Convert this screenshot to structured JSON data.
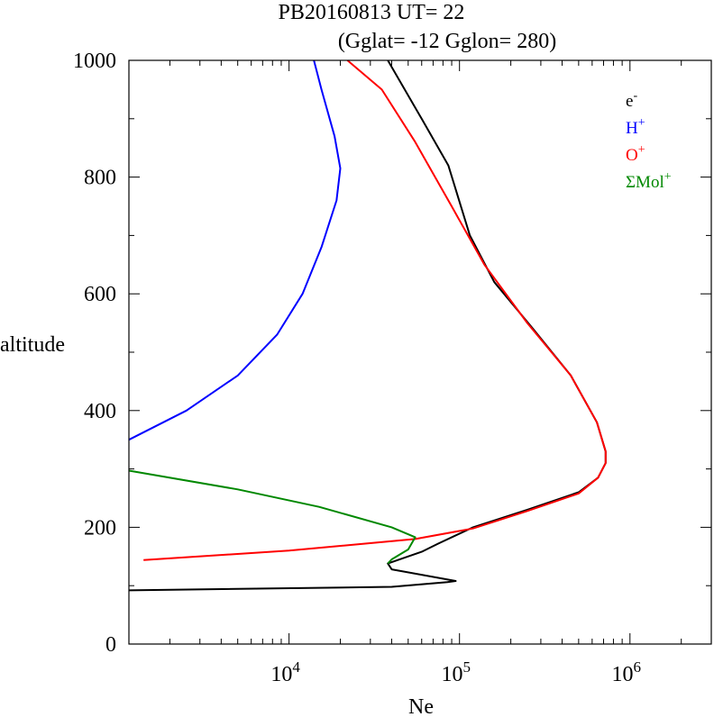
{
  "chart_data": {
    "type": "line",
    "title_line1": "PB20160813   UT=  22",
    "title_line2": "(Gglat= -12   Gglon=  280)",
    "xlabel": "Ne",
    "ylabel": "altitude",
    "xscale": "log",
    "xlim": [
      1150,
      3000000
    ],
    "ylim": [
      0,
      1000
    ],
    "x_ticks": [
      {
        "value": 10000,
        "base": "10",
        "exp": "4"
      },
      {
        "value": 100000,
        "base": "10",
        "exp": "5"
      },
      {
        "value": 1000000,
        "base": "10",
        "exp": "6"
      }
    ],
    "y_ticks": [
      {
        "value": 0,
        "label": "0"
      },
      {
        "value": 200,
        "label": "200"
      },
      {
        "value": 400,
        "label": "400"
      },
      {
        "value": 600,
        "label": "600"
      },
      {
        "value": 800,
        "label": "800"
      },
      {
        "value": 1000,
        "label": "1000"
      }
    ],
    "legend_position": "top-right",
    "series": [
      {
        "name": "e-",
        "label_base": "e",
        "label_sup": "-",
        "color": "#000000",
        "points": [
          [
            1150,
            92
          ],
          [
            40000,
            98
          ],
          [
            85000,
            106
          ],
          [
            95000,
            108
          ],
          [
            40000,
            128
          ],
          [
            38000,
            138
          ],
          [
            60000,
            158
          ],
          [
            75000,
            172
          ],
          [
            120000,
            200
          ],
          [
            250000,
            230
          ],
          [
            500000,
            260
          ],
          [
            650000,
            285
          ],
          [
            720000,
            310
          ],
          [
            720000,
            330
          ],
          [
            640000,
            380
          ],
          [
            450000,
            460
          ],
          [
            270000,
            540
          ],
          [
            160000,
            620
          ],
          [
            115000,
            700
          ],
          [
            86000,
            820
          ],
          [
            60000,
            900
          ],
          [
            38000,
            1000
          ]
        ]
      },
      {
        "name": "H+",
        "label_base": "H",
        "label_sup": "+",
        "color": "#0000ff",
        "points": [
          [
            1150,
            350
          ],
          [
            2500,
            400
          ],
          [
            5000,
            460
          ],
          [
            8500,
            530
          ],
          [
            12000,
            600
          ],
          [
            15500,
            680
          ],
          [
            19000,
            760
          ],
          [
            20000,
            815
          ],
          [
            18500,
            870
          ],
          [
            15500,
            950
          ],
          [
            14000,
            1000
          ]
        ]
      },
      {
        "name": "O+",
        "label_base": "O",
        "label_sup": "+",
        "color": "#ff0000",
        "points": [
          [
            1400,
            144
          ],
          [
            10000,
            160
          ],
          [
            28000,
            172
          ],
          [
            55000,
            180
          ],
          [
            120000,
            198
          ],
          [
            250000,
            228
          ],
          [
            500000,
            258
          ],
          [
            650000,
            285
          ],
          [
            720000,
            310
          ],
          [
            720000,
            330
          ],
          [
            640000,
            380
          ],
          [
            450000,
            460
          ],
          [
            250000,
            550
          ],
          [
            140000,
            650
          ],
          [
            90000,
            750
          ],
          [
            55000,
            860
          ],
          [
            35000,
            950
          ],
          [
            22000,
            1000
          ]
        ]
      },
      {
        "name": "ΣMol+",
        "label_base": "ΣMol",
        "label_sup": "+",
        "color": "#008800",
        "points": [
          [
            1150,
            297
          ],
          [
            5000,
            265
          ],
          [
            15000,
            235
          ],
          [
            40000,
            200
          ],
          [
            55000,
            183
          ],
          [
            50000,
            162
          ],
          [
            40000,
            145
          ],
          [
            38000,
            138
          ]
        ]
      }
    ]
  }
}
